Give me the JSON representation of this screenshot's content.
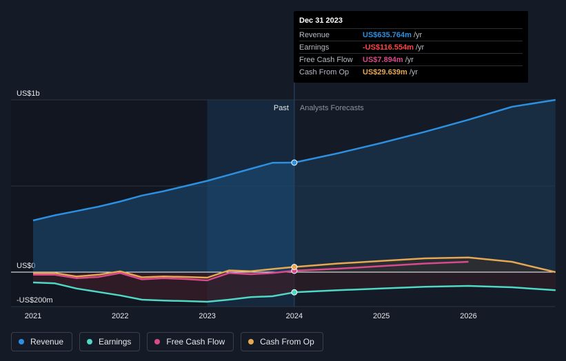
{
  "chart_data": {
    "type": "line",
    "x_ticks": [
      "2021",
      "2022",
      "2023",
      "2024",
      "2025",
      "2026"
    ],
    "y_labels": {
      "top": "US$1b",
      "zero": "US$0",
      "bottom": "-US$200m"
    },
    "ylim": [
      -200,
      1000
    ],
    "x_range": [
      2021.0,
      2027.0
    ],
    "split_labels": {
      "past": "Past",
      "forecast": "Analysts Forecasts"
    },
    "series": [
      {
        "name": "Revenue",
        "color": "#2d8fe0",
        "points": [
          [
            2021.0,
            300
          ],
          [
            2021.25,
            330
          ],
          [
            2021.5,
            355
          ],
          [
            2021.75,
            380
          ],
          [
            2022.0,
            410
          ],
          [
            2022.25,
            445
          ],
          [
            2022.5,
            470
          ],
          [
            2022.75,
            500
          ],
          [
            2023.0,
            530
          ],
          [
            2023.25,
            565
          ],
          [
            2023.5,
            600
          ],
          [
            2023.75,
            635
          ],
          [
            2024.0,
            636
          ]
        ],
        "forecast": [
          [
            2024.0,
            636
          ],
          [
            2024.5,
            690
          ],
          [
            2025.0,
            750
          ],
          [
            2025.5,
            815
          ],
          [
            2026.0,
            885
          ],
          [
            2026.5,
            960
          ],
          [
            2027.0,
            1000
          ]
        ]
      },
      {
        "name": "Earnings",
        "color": "#4fd8c5",
        "points": [
          [
            2021.0,
            -60
          ],
          [
            2021.25,
            -65
          ],
          [
            2021.5,
            -95
          ],
          [
            2021.75,
            -115
          ],
          [
            2022.0,
            -135
          ],
          [
            2022.25,
            -160
          ],
          [
            2022.5,
            -165
          ],
          [
            2022.75,
            -168
          ],
          [
            2023.0,
            -172
          ],
          [
            2023.25,
            -160
          ],
          [
            2023.5,
            -145
          ],
          [
            2023.75,
            -140
          ],
          [
            2024.0,
            -117
          ]
        ],
        "forecast": [
          [
            2024.0,
            -117
          ],
          [
            2024.5,
            -105
          ],
          [
            2025.0,
            -95
          ],
          [
            2025.5,
            -85
          ],
          [
            2026.0,
            -80
          ],
          [
            2026.5,
            -88
          ],
          [
            2027.0,
            -105
          ]
        ]
      },
      {
        "name": "Free Cash Flow",
        "color": "#d94a8c",
        "points": [
          [
            2021.0,
            -15
          ],
          [
            2021.25,
            -15
          ],
          [
            2021.5,
            -35
          ],
          [
            2021.75,
            -28
          ],
          [
            2022.0,
            -5
          ],
          [
            2022.25,
            -42
          ],
          [
            2022.5,
            -35
          ],
          [
            2022.75,
            -40
          ],
          [
            2023.0,
            -48
          ],
          [
            2023.25,
            -5
          ],
          [
            2023.5,
            -12
          ],
          [
            2023.75,
            -5
          ],
          [
            2024.0,
            8
          ]
        ],
        "forecast": [
          [
            2024.0,
            8
          ],
          [
            2024.5,
            20
          ],
          [
            2025.0,
            35
          ],
          [
            2025.5,
            50
          ],
          [
            2026.0,
            60
          ]
        ]
      },
      {
        "name": "Cash From Op",
        "color": "#e6a852",
        "points": [
          [
            2021.0,
            -5
          ],
          [
            2021.25,
            -5
          ],
          [
            2021.5,
            -25
          ],
          [
            2021.75,
            -15
          ],
          [
            2022.0,
            5
          ],
          [
            2022.25,
            -30
          ],
          [
            2022.5,
            -25
          ],
          [
            2022.75,
            -28
          ],
          [
            2023.0,
            -32
          ],
          [
            2023.25,
            10
          ],
          [
            2023.5,
            5
          ],
          [
            2023.75,
            18
          ],
          [
            2024.0,
            30
          ]
        ],
        "forecast": [
          [
            2024.0,
            30
          ],
          [
            2024.5,
            50
          ],
          [
            2025.0,
            65
          ],
          [
            2025.5,
            80
          ],
          [
            2026.0,
            85
          ],
          [
            2026.5,
            60
          ],
          [
            2027.0,
            0
          ]
        ]
      }
    ],
    "highlight_x": 2024.0
  },
  "tooltip": {
    "date": "Dec 31 2023",
    "rows": [
      {
        "label": "Revenue",
        "value": "US$635.764m",
        "unit": "/yr",
        "color": "#2d8fe0"
      },
      {
        "label": "Earnings",
        "value": "-US$116.554m",
        "unit": "/yr",
        "color": "#ff4545"
      },
      {
        "label": "Free Cash Flow",
        "value": "US$7.894m",
        "unit": "/yr",
        "color": "#d94a8c"
      },
      {
        "label": "Cash From Op",
        "value": "US$29.639m",
        "unit": "/yr",
        "color": "#e6a852"
      }
    ]
  },
  "legend": [
    {
      "label": "Revenue",
      "color": "#2d8fe0"
    },
    {
      "label": "Earnings",
      "color": "#4fd8c5"
    },
    {
      "label": "Free Cash Flow",
      "color": "#d94a8c"
    },
    {
      "label": "Cash From Op",
      "color": "#e6a852"
    }
  ]
}
